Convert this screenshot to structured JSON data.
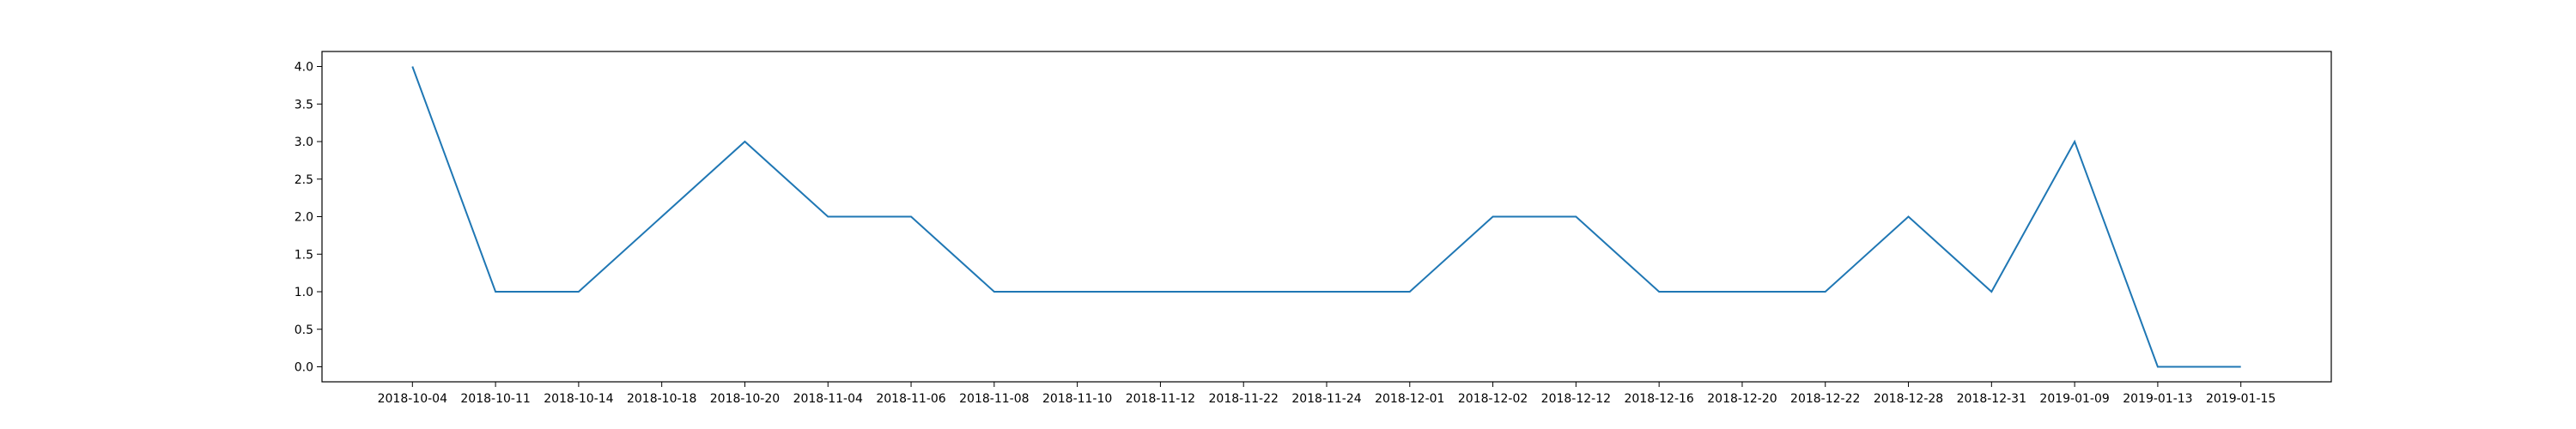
{
  "chart_data": {
    "type": "line",
    "title": "",
    "xlabel": "",
    "ylabel": "",
    "grid": false,
    "ylim": [
      -0.2,
      4.2
    ],
    "y_ticks": [
      "0.0",
      "0.5",
      "1.0",
      "1.5",
      "2.0",
      "2.5",
      "3.0",
      "3.5",
      "4.0"
    ],
    "categories": [
      "2018-10-04",
      "2018-10-11",
      "2018-10-14",
      "2018-10-18",
      "2018-10-20",
      "2018-11-04",
      "2018-11-06",
      "2018-11-08",
      "2018-11-10",
      "2018-11-12",
      "2018-11-22",
      "2018-11-24",
      "2018-12-01",
      "2018-12-02",
      "2018-12-12",
      "2018-12-16",
      "2018-12-20",
      "2018-12-22",
      "2018-12-28",
      "2018-12-31",
      "2019-01-09",
      "2019-01-13",
      "2019-01-15"
    ],
    "series": [
      {
        "color": "#1f77b4",
        "values": [
          4,
          1,
          1,
          2,
          3,
          2,
          2,
          1,
          1,
          1,
          1,
          1,
          1,
          2,
          2,
          1,
          1,
          1,
          2,
          1,
          3,
          0,
          0
        ]
      }
    ]
  }
}
